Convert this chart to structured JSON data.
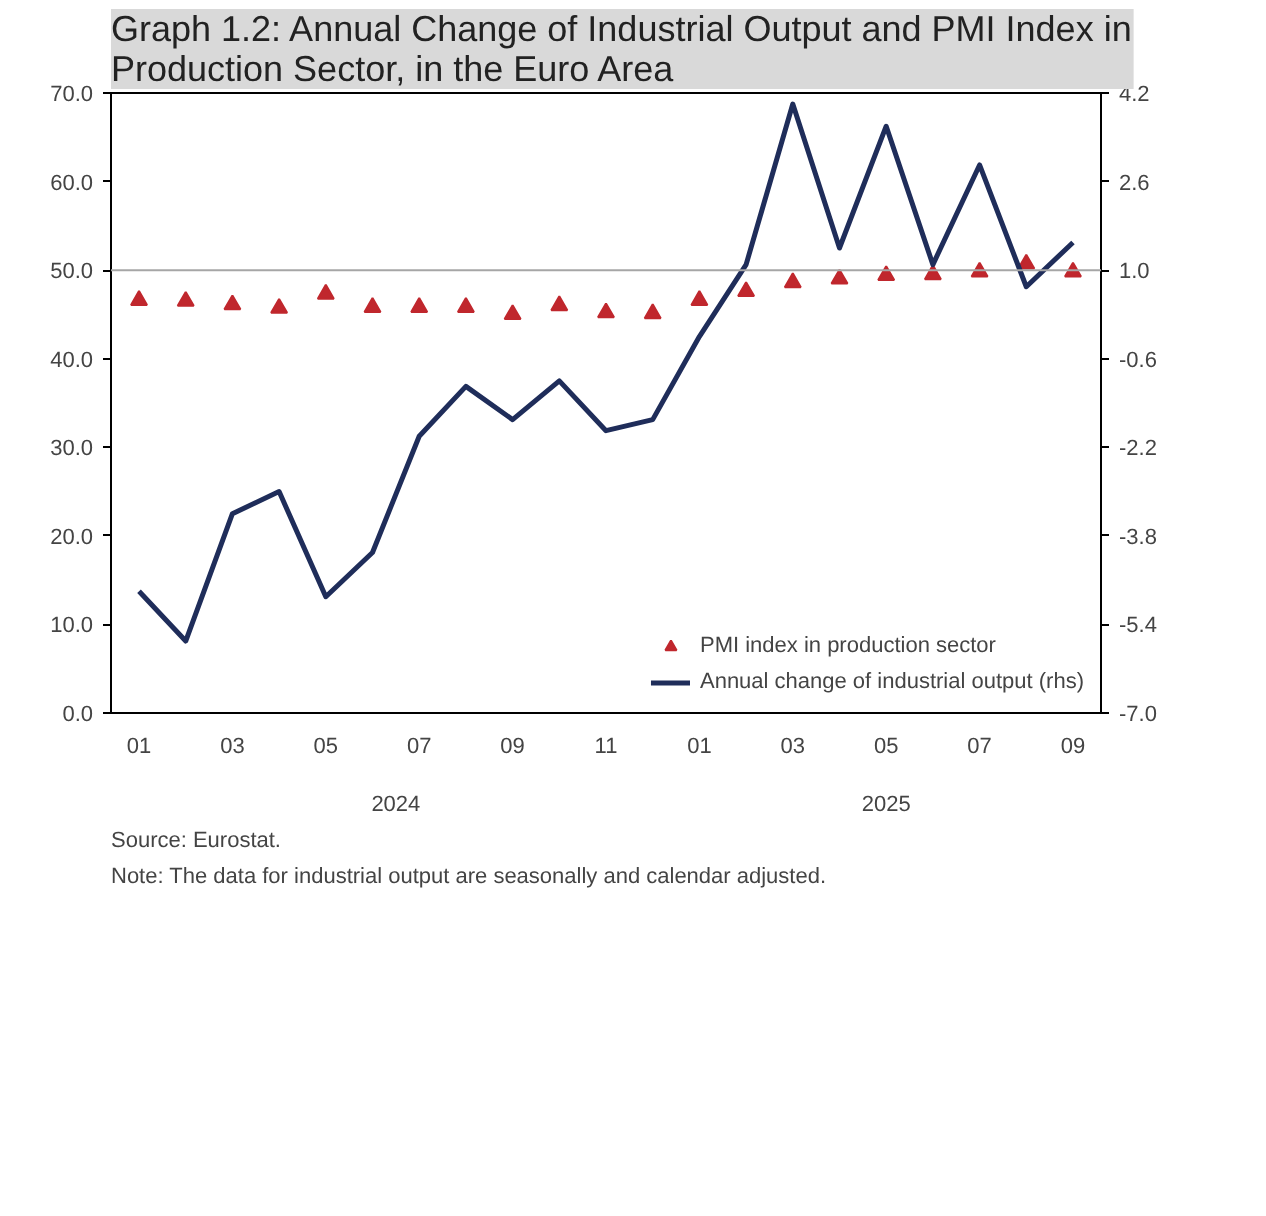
{
  "chart_data": {
    "type": "line",
    "title": "Graph 1.2: Annual Change of Industrial Output and PMI Index in Production Sector, in the Euro Area",
    "categories": [
      "01",
      null,
      "03",
      null,
      "05",
      null,
      "07",
      null,
      "09",
      null,
      "11",
      null,
      "01",
      null,
      "03",
      null,
      "05",
      null,
      "07",
      null,
      "09"
    ],
    "series": [
      {
        "name": "PMI index in production sector",
        "type": "scatter",
        "marker": "triangle",
        "color": "#c0272d",
        "values": [
          46.6,
          46.5,
          46.1,
          45.7,
          47.3,
          45.8,
          45.8,
          45.8,
          45.0,
          46.0,
          45.2,
          45.1,
          46.6,
          47.6,
          48.6,
          49.0,
          49.4,
          49.5,
          49.8,
          50.7,
          49.8
        ]
      },
      {
        "name": "Annual change of industrial output (rhs)",
        "axis": "y2",
        "color": "#1f2d5a",
        "values": [
          -4.8,
          -5.7,
          -3.4,
          -3.0,
          -4.9,
          -4.1,
          -2.0,
          -1.1,
          -1.7,
          -1.0,
          -1.9,
          -1.7,
          -0.2,
          1.1,
          4.0,
          1.4,
          3.6,
          1.1,
          2.9,
          0.7,
          1.5
        ]
      }
    ],
    "ylim": [
      0,
      70
    ],
    "yticks": [
      {
        "value": 0,
        "label": "0.0"
      },
      {
        "value": 10,
        "label": "10.0"
      },
      {
        "value": 20,
        "label": "20.0"
      },
      {
        "value": 30,
        "label": "30.0"
      },
      {
        "value": 40,
        "label": "40.0"
      },
      {
        "value": 50,
        "label": "50.0"
      },
      {
        "value": 60,
        "label": "60.0"
      },
      {
        "value": 70,
        "label": "70.0"
      }
    ],
    "y2lim": [
      -7,
      4.2
    ],
    "y2ticks": [
      {
        "value": -7,
        "label": "-7.0"
      },
      -5.4,
      -3.8,
      -2.2,
      -0.6,
      {
        "value": 1,
        "label": "1.0"
      },
      2.6,
      4.2
    ],
    "ref_lines": [
      {
        "axis": "y",
        "value": 50,
        "color": "#a6a6a6"
      }
    ],
    "legend": "bottom right",
    "grid": false,
    "annotations": [
      "2024",
      "2025",
      "Source: Eurostat.",
      "Note: The data for industrial output are seasonally and calendar adjusted."
    ]
  }
}
